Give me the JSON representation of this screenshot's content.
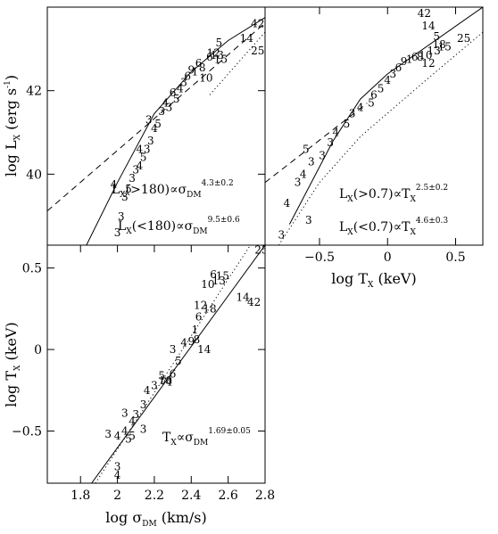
{
  "chart_data": [
    {
      "id": "lx_sigma",
      "type": "scatter",
      "xlim": [
        1.62,
        2.8
      ],
      "ylim": [
        38.3,
        44.0
      ],
      "x_ticks": [],
      "y_ticks": [
        {
          "v": 40,
          "label": "40"
        },
        {
          "v": 42,
          "label": "42"
        }
      ],
      "ylabel": {
        "main": "log L",
        "sub": "X",
        "unit": " (erg s",
        "sup": "-1",
        "end": ")"
      },
      "relations": [
        {
          "prefix": "L",
          "sub": "X",
          "mid": "(>180)∝σ",
          "sub2": "DM",
          "sup": "4.3±0.2"
        },
        {
          "prefix": "L",
          "sub": "X",
          "mid": "(<180)∝σ",
          "sub2": "DM",
          "sup": "9.5±0.6"
        }
      ],
      "lines": [
        {
          "style": "dashed",
          "points": [
            [
              1.62,
              39.12
            ],
            [
              2.8,
              43.62
            ]
          ]
        },
        {
          "style": "solid",
          "points": [
            [
              1.83,
              38.28
            ],
            [
              2.0,
              39.8
            ],
            [
              2.2,
              41.45
            ],
            [
              2.4,
              42.45
            ],
            [
              2.6,
              43.2
            ],
            [
              2.8,
              43.75
            ]
          ]
        },
        {
          "style": "dotted",
          "points": [
            [
              2.5,
              41.9
            ],
            [
              2.8,
              43.4
            ]
          ]
        }
      ],
      "points": [
        {
          "x": 2.0,
          "y": 38.6,
          "label": "3"
        },
        {
          "x": 2.02,
          "y": 38.98,
          "label": "3"
        },
        {
          "x": 1.98,
          "y": 39.75,
          "label": "4"
        },
        {
          "x": 2.04,
          "y": 39.45,
          "label": "3"
        },
        {
          "x": 2.06,
          "y": 39.65,
          "label": "5"
        },
        {
          "x": 2.08,
          "y": 39.9,
          "label": "3"
        },
        {
          "x": 2.1,
          "y": 40.1,
          "label": "3"
        },
        {
          "x": 2.12,
          "y": 40.2,
          "label": "4"
        },
        {
          "x": 2.14,
          "y": 40.4,
          "label": "5"
        },
        {
          "x": 2.16,
          "y": 40.6,
          "label": "3"
        },
        {
          "x": 2.12,
          "y": 40.6,
          "label": "4"
        },
        {
          "x": 2.18,
          "y": 40.8,
          "label": "3"
        },
        {
          "x": 2.2,
          "y": 41.1,
          "label": "4"
        },
        {
          "x": 2.17,
          "y": 41.3,
          "label": "3"
        },
        {
          "x": 2.22,
          "y": 41.2,
          "label": "5"
        },
        {
          "x": 2.24,
          "y": 41.5,
          "label": "3"
        },
        {
          "x": 2.26,
          "y": 41.7,
          "label": "4"
        },
        {
          "x": 2.28,
          "y": 41.6,
          "label": "3"
        },
        {
          "x": 2.3,
          "y": 41.95,
          "label": "6"
        },
        {
          "x": 2.32,
          "y": 41.8,
          "label": "5"
        },
        {
          "x": 2.34,
          "y": 42.05,
          "label": "4"
        },
        {
          "x": 2.36,
          "y": 42.2,
          "label": "3"
        },
        {
          "x": 2.38,
          "y": 42.35,
          "label": "6"
        },
        {
          "x": 2.4,
          "y": 42.5,
          "label": "9"
        },
        {
          "x": 2.42,
          "y": 42.45,
          "label": "1"
        },
        {
          "x": 2.44,
          "y": 42.65,
          "label": "6"
        },
        {
          "x": 2.46,
          "y": 42.55,
          "label": "8"
        },
        {
          "x": 2.48,
          "y": 42.3,
          "label": "10"
        },
        {
          "x": 2.5,
          "y": 42.8,
          "label": "6"
        },
        {
          "x": 2.52,
          "y": 42.9,
          "label": "12"
        },
        {
          "x": 2.54,
          "y": 42.85,
          "label": "13"
        },
        {
          "x": 2.56,
          "y": 42.75,
          "label": "15"
        },
        {
          "x": 2.55,
          "y": 43.15,
          "label": "5"
        },
        {
          "x": 2.7,
          "y": 43.25,
          "label": "14"
        },
        {
          "x": 2.76,
          "y": 43.6,
          "label": "42"
        },
        {
          "x": 2.76,
          "y": 42.95,
          "label": "25"
        }
      ]
    },
    {
      "id": "lx_tx",
      "type": "scatter",
      "xlim": [
        -0.9,
        0.7
      ],
      "ylim": [
        38.3,
        44.0
      ],
      "x_ticks": [
        {
          "v": -0.5,
          "label": "−0.5"
        },
        {
          "v": 0,
          "label": "0"
        },
        {
          "v": 0.5,
          "label": "0.5"
        }
      ],
      "y_ticks": [],
      "xlabel": {
        "main": "log T",
        "sub": "X",
        "unit": " (keV)"
      },
      "relations": [
        {
          "prefix": "L",
          "sub": "X",
          "mid": "(>0.7)∝T",
          "sub2": "X",
          "sup": "2.5±0.2"
        },
        {
          "prefix": "L",
          "sub": "X",
          "mid": "(<0.7)∝T",
          "sub2": "X",
          "sup": "4.6±0.3"
        }
      ],
      "lines": [
        {
          "style": "dashed",
          "points": [
            [
              -0.9,
              39.8
            ],
            [
              -0.15,
              41.7
            ]
          ]
        },
        {
          "style": "solid",
          "points": [
            [
              -0.72,
              38.8
            ],
            [
              -0.4,
              40.8
            ],
            [
              -0.2,
              41.8
            ],
            [
              0.0,
              42.4
            ],
            [
              0.7,
              44.0
            ]
          ]
        },
        {
          "style": "dotted",
          "points": [
            [
              -0.8,
              38.3
            ],
            [
              -0.5,
              39.8
            ],
            [
              -0.2,
              40.9
            ],
            [
              0.3,
              42.3
            ],
            [
              0.7,
              43.4
            ]
          ]
        }
      ],
      "points": [
        {
          "x": -0.78,
          "y": 38.55,
          "label": "3"
        },
        {
          "x": -0.58,
          "y": 38.9,
          "label": "3"
        },
        {
          "x": -0.74,
          "y": 39.3,
          "label": "4"
        },
        {
          "x": -0.66,
          "y": 39.8,
          "label": "3"
        },
        {
          "x": -0.62,
          "y": 40.0,
          "label": "4"
        },
        {
          "x": -0.56,
          "y": 40.3,
          "label": "3"
        },
        {
          "x": -0.6,
          "y": 40.6,
          "label": "5"
        },
        {
          "x": -0.48,
          "y": 40.45,
          "label": "3"
        },
        {
          "x": -0.42,
          "y": 40.75,
          "label": "3"
        },
        {
          "x": -0.38,
          "y": 41.0,
          "label": "4"
        },
        {
          "x": -0.3,
          "y": 41.2,
          "label": "5"
        },
        {
          "x": -0.26,
          "y": 41.45,
          "label": "3"
        },
        {
          "x": -0.2,
          "y": 41.6,
          "label": "4"
        },
        {
          "x": -0.12,
          "y": 41.7,
          "label": "5"
        },
        {
          "x": -0.1,
          "y": 41.9,
          "label": "6"
        },
        {
          "x": -0.05,
          "y": 42.05,
          "label": "5"
        },
        {
          "x": 0.0,
          "y": 42.25,
          "label": "4"
        },
        {
          "x": 0.04,
          "y": 42.4,
          "label": "3"
        },
        {
          "x": 0.08,
          "y": 42.55,
          "label": "6"
        },
        {
          "x": 0.12,
          "y": 42.7,
          "label": "9"
        },
        {
          "x": 0.16,
          "y": 42.75,
          "label": "1"
        },
        {
          "x": 0.2,
          "y": 42.8,
          "label": "6"
        },
        {
          "x": 0.24,
          "y": 42.8,
          "label": "8"
        },
        {
          "x": 0.28,
          "y": 42.85,
          "label": "10"
        },
        {
          "x": 0.3,
          "y": 42.65,
          "label": "12"
        },
        {
          "x": 0.34,
          "y": 42.95,
          "label": "13"
        },
        {
          "x": 0.36,
          "y": 43.3,
          "label": "5"
        },
        {
          "x": 0.38,
          "y": 43.1,
          "label": "18"
        },
        {
          "x": 0.42,
          "y": 43.05,
          "label": "15"
        },
        {
          "x": 0.3,
          "y": 43.55,
          "label": "14"
        },
        {
          "x": 0.27,
          "y": 43.85,
          "label": "42"
        },
        {
          "x": 0.56,
          "y": 43.25,
          "label": "25"
        }
      ]
    },
    {
      "id": "tx_sigma",
      "type": "scatter",
      "xlim": [
        1.62,
        2.8
      ],
      "ylim": [
        -0.82,
        0.64
      ],
      "x_ticks": [
        {
          "v": 1.8,
          "label": "1.8"
        },
        {
          "v": 2.0,
          "label": "2"
        },
        {
          "v": 2.2,
          "label": "2.2"
        },
        {
          "v": 2.4,
          "label": "2.4"
        },
        {
          "v": 2.6,
          "label": "2.6"
        },
        {
          "v": 2.8,
          "label": "2.8"
        }
      ],
      "y_ticks": [
        {
          "v": 0.5,
          "label": "0.5"
        },
        {
          "v": 0,
          "label": "0"
        },
        {
          "v": -0.5,
          "label": "−0.5"
        }
      ],
      "xlabel": {
        "main": "log σ",
        "sub": "DM",
        "unit": " (km/s)"
      },
      "ylabel": {
        "main": "log T",
        "sub": "X",
        "unit": " (keV)"
      },
      "relations": [
        {
          "prefix": "T",
          "sub": "X",
          "mid": "∝σ",
          "sub2": "DM",
          "sup": "1.69±0.05"
        }
      ],
      "lines": [
        {
          "style": "solid",
          "points": [
            [
              1.86,
              -0.82
            ],
            [
              2.8,
              0.64
            ]
          ]
        },
        {
          "style": "dotted",
          "points": [
            [
              1.88,
              -0.82
            ],
            [
              2.72,
              0.64
            ]
          ]
        }
      ],
      "points": [
        {
          "x": 2.0,
          "y": -0.72,
          "label": "3"
        },
        {
          "x": 2.0,
          "y": -0.77,
          "label": "4"
        },
        {
          "x": 1.95,
          "y": -0.52,
          "label": "3"
        },
        {
          "x": 2.0,
          "y": -0.53,
          "label": "4"
        },
        {
          "x": 2.04,
          "y": -0.5,
          "label": "4"
        },
        {
          "x": 2.06,
          "y": -0.55,
          "label": "5"
        },
        {
          "x": 2.08,
          "y": -0.53,
          "label": "5"
        },
        {
          "x": 2.14,
          "y": -0.49,
          "label": "3"
        },
        {
          "x": 2.04,
          "y": -0.39,
          "label": "3"
        },
        {
          "x": 2.1,
          "y": -0.4,
          "label": "3"
        },
        {
          "x": 2.08,
          "y": -0.44,
          "label": "4"
        },
        {
          "x": 2.14,
          "y": -0.34,
          "label": "3"
        },
        {
          "x": 2.16,
          "y": -0.25,
          "label": "4"
        },
        {
          "x": 2.2,
          "y": -0.22,
          "label": "3"
        },
        {
          "x": 2.25,
          "y": -0.2,
          "label": "7"
        },
        {
          "x": 2.24,
          "y": -0.16,
          "label": "5"
        },
        {
          "x": 2.3,
          "y": -0.15,
          "label": "6"
        },
        {
          "x": 2.28,
          "y": -0.2,
          "label": "4"
        },
        {
          "x": 2.26,
          "y": -0.19,
          "label": "10"
        },
        {
          "x": 2.3,
          "y": 0.0,
          "label": "3"
        },
        {
          "x": 2.33,
          "y": -0.07,
          "label": "5"
        },
        {
          "x": 2.36,
          "y": 0.04,
          "label": "4"
        },
        {
          "x": 2.4,
          "y": 0.05,
          "label": "9"
        },
        {
          "x": 2.42,
          "y": 0.12,
          "label": "1"
        },
        {
          "x": 2.43,
          "y": 0.06,
          "label": "8"
        },
        {
          "x": 2.47,
          "y": 0.0,
          "label": "14"
        },
        {
          "x": 2.44,
          "y": 0.2,
          "label": "6"
        },
        {
          "x": 2.45,
          "y": 0.27,
          "label": "12"
        },
        {
          "x": 2.5,
          "y": 0.25,
          "label": "18"
        },
        {
          "x": 2.49,
          "y": 0.4,
          "label": "10"
        },
        {
          "x": 2.52,
          "y": 0.46,
          "label": "6"
        },
        {
          "x": 2.55,
          "y": 0.42,
          "label": "13"
        },
        {
          "x": 2.57,
          "y": 0.45,
          "label": "15"
        },
        {
          "x": 2.68,
          "y": 0.32,
          "label": "14"
        },
        {
          "x": 2.74,
          "y": 0.29,
          "label": "42"
        },
        {
          "x": 2.78,
          "y": 0.61,
          "label": "25"
        }
      ]
    }
  ]
}
